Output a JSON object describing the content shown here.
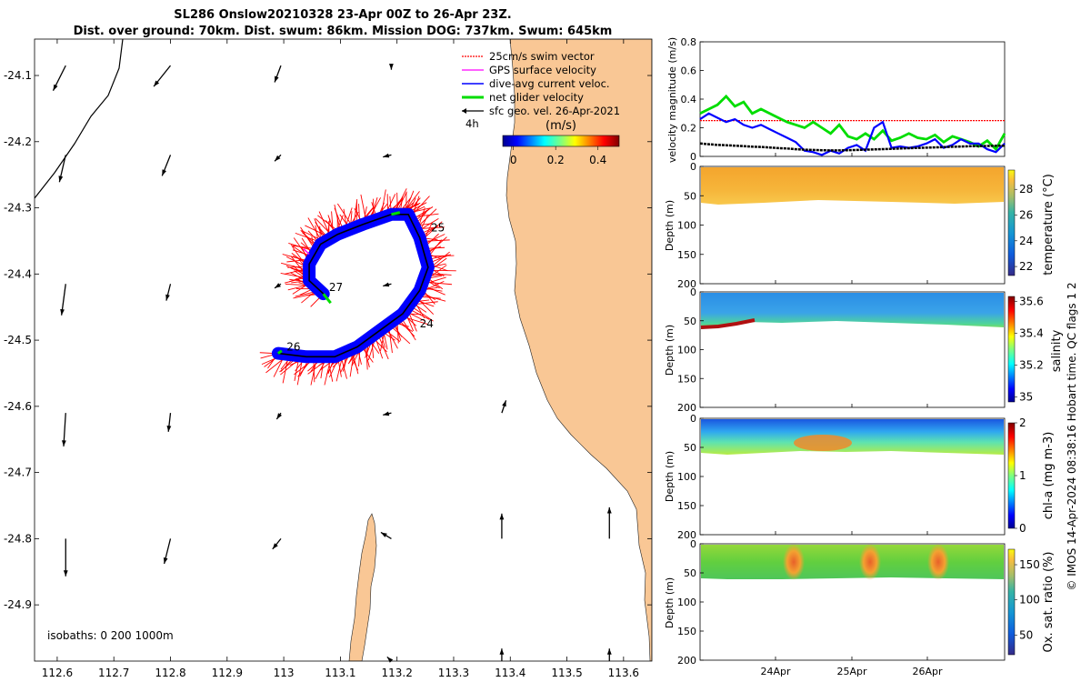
{
  "title": {
    "line1": "SL286 Onslow20210328 23-Apr 00Z to 26-Apr 23Z.",
    "line2": "Dist. over ground: 70km. Dist. swum: 86km. Mission DOG: 737km. Swum: 645km"
  },
  "colors": {
    "land": "#f9c795",
    "track": "#0000ff",
    "swim": "#ff0000",
    "gps": "#ff00ff",
    "net": "#00dd00",
    "geo": "#000000",
    "temp_fill": "#f0b238",
    "oxy_fill": "#6fd53a"
  },
  "chart_data": [
    {
      "type": "map",
      "xlabel": "",
      "ylabel": "",
      "xlim": [
        112.56,
        113.65
      ],
      "ylim": [
        -24.985,
        -24.045
      ],
      "x_ticks": [
        "112.6",
        "112.7",
        "112.8",
        "112.9",
        "113",
        "113.1",
        "113.2",
        "113.3",
        "113.4",
        "113.5",
        "113.6"
      ],
      "y_ticks": [
        "-24.1",
        "-24.2",
        "-24.3",
        "-24.4",
        "-24.5",
        "-24.6",
        "-24.7",
        "-24.8",
        "-24.9"
      ],
      "legend": [
        {
          "label": "25cm/s swim vector",
          "color": "#ff0000"
        },
        {
          "label": "GPS surface velocity",
          "color": "#ff00ff"
        },
        {
          "label": "dive-avg current veloc.",
          "color": "#0000ff"
        },
        {
          "label": "net glider velocity",
          "color": "#00dd00"
        },
        {
          "label": "sfc geo. vel. 26-Apr-2021",
          "color": "#000000"
        }
      ],
      "scale_label": "4h",
      "colorbar": {
        "label": "(m/s)",
        "ticks": [
          "0",
          "0.2",
          "0.4"
        ],
        "range": [
          -0.05,
          0.5
        ]
      },
      "isobath_note": "isobaths: 0   200  1000m",
      "day_labels": [
        {
          "text": "25",
          "lon": 113.26,
          "lat": -24.33
        },
        {
          "text": "27",
          "lon": 113.08,
          "lat": -24.42
        },
        {
          "text": "24",
          "lon": 113.24,
          "lat": -24.475
        },
        {
          "text": "26",
          "lon": 113.005,
          "lat": -24.51
        }
      ],
      "track": [
        {
          "lon": 112.99,
          "lat": -24.52
        },
        {
          "lon": 113.04,
          "lat": -24.525
        },
        {
          "lon": 113.09,
          "lat": -24.525
        },
        {
          "lon": 113.13,
          "lat": -24.51
        },
        {
          "lon": 113.17,
          "lat": -24.485
        },
        {
          "lon": 113.21,
          "lat": -24.46
        },
        {
          "lon": 113.24,
          "lat": -24.425
        },
        {
          "lon": 113.255,
          "lat": -24.39
        },
        {
          "lon": 113.24,
          "lat": -24.345
        },
        {
          "lon": 113.22,
          "lat": -24.31
        },
        {
          "lon": 113.19,
          "lat": -24.31
        },
        {
          "lon": 113.14,
          "lat": -24.325
        },
        {
          "lon": 113.095,
          "lat": -24.34
        },
        {
          "lon": 113.065,
          "lat": -24.355
        },
        {
          "lon": 113.045,
          "lat": -24.385
        },
        {
          "lon": 113.045,
          "lat": -24.41
        },
        {
          "lon": 113.07,
          "lat": -24.43
        }
      ],
      "geo_vectors": [
        {
          "lon": 112.615,
          "lat": -24.085,
          "u": -0.06,
          "v": -0.12
        },
        {
          "lon": 112.8,
          "lat": -24.085,
          "u": -0.08,
          "v": -0.1
        },
        {
          "lon": 112.995,
          "lat": -24.085,
          "u": -0.03,
          "v": -0.08
        },
        {
          "lon": 113.19,
          "lat": -24.085,
          "u": 0.0,
          "v": -0.02
        },
        {
          "lon": 112.615,
          "lat": -24.22,
          "u": -0.03,
          "v": -0.13
        },
        {
          "lon": 112.8,
          "lat": -24.22,
          "u": -0.04,
          "v": -0.1
        },
        {
          "lon": 112.995,
          "lat": -24.22,
          "u": -0.03,
          "v": -0.03
        },
        {
          "lon": 113.19,
          "lat": -24.22,
          "u": -0.04,
          "v": -0.01
        },
        {
          "lon": 112.615,
          "lat": -24.415,
          "u": -0.02,
          "v": -0.15
        },
        {
          "lon": 112.8,
          "lat": -24.415,
          "u": -0.02,
          "v": -0.08
        },
        {
          "lon": 112.995,
          "lat": -24.415,
          "u": -0.03,
          "v": -0.02
        },
        {
          "lon": 113.19,
          "lat": -24.415,
          "u": -0.04,
          "v": -0.01
        },
        {
          "lon": 112.615,
          "lat": -24.61,
          "u": -0.01,
          "v": -0.16
        },
        {
          "lon": 112.8,
          "lat": -24.61,
          "u": -0.01,
          "v": -0.09
        },
        {
          "lon": 112.995,
          "lat": -24.61,
          "u": -0.02,
          "v": -0.03
        },
        {
          "lon": 113.19,
          "lat": -24.61,
          "u": -0.04,
          "v": -0.01
        },
        {
          "lon": 113.385,
          "lat": -24.61,
          "u": 0.02,
          "v": 0.06
        },
        {
          "lon": 112.615,
          "lat": -24.8,
          "u": 0.0,
          "v": -0.18
        },
        {
          "lon": 112.8,
          "lat": -24.8,
          "u": -0.03,
          "v": -0.12
        },
        {
          "lon": 112.995,
          "lat": -24.8,
          "u": -0.04,
          "v": -0.05
        },
        {
          "lon": 113.19,
          "lat": -24.8,
          "u": -0.05,
          "v": 0.03
        },
        {
          "lon": 113.385,
          "lat": -24.8,
          "u": 0.0,
          "v": 0.12
        },
        {
          "lon": 113.575,
          "lat": -24.8,
          "u": 0.0,
          "v": 0.15
        },
        {
          "lon": 113.19,
          "lat": -24.985,
          "u": -0.02,
          "v": 0.02
        },
        {
          "lon": 113.385,
          "lat": -24.985,
          "u": 0.0,
          "v": 0.06
        },
        {
          "lon": 113.575,
          "lat": -24.985,
          "u": 0.0,
          "v": 0.06
        }
      ]
    },
    {
      "type": "line",
      "ylabel": "velocity magnitude (m/s)",
      "ylim": [
        0,
        0.8
      ],
      "y_ticks": [
        "0",
        "0.2",
        "0.4",
        "0.6",
        "0.8"
      ],
      "x_ticks": [
        "24Apr",
        "25Apr",
        "26Apr"
      ],
      "series": [
        {
          "name": "swim 25cm/s",
          "color": "#ff0000",
          "values": [
            0.25,
            0.25,
            0.25,
            0.25,
            0.25,
            0.25,
            0.25,
            0.25,
            0.25,
            0.25,
            0.25,
            0.25,
            0.25,
            0.25,
            0.25,
            0.25,
            0.25,
            0.25,
            0.25,
            0.25,
            0.25,
            0.25,
            0.25,
            0.25,
            0.25,
            0.25,
            0.25,
            0.25,
            0.25,
            0.25,
            0.25,
            0.25,
            0.25,
            0.25,
            0.25,
            0.25
          ]
        },
        {
          "name": "net glider velocity",
          "color": "#00dd00",
          "values": [
            0.3,
            0.33,
            0.36,
            0.42,
            0.35,
            0.38,
            0.3,
            0.33,
            0.3,
            0.27,
            0.24,
            0.22,
            0.2,
            0.24,
            0.2,
            0.16,
            0.22,
            0.14,
            0.12,
            0.16,
            0.12,
            0.18,
            0.11,
            0.13,
            0.16,
            0.13,
            0.12,
            0.15,
            0.1,
            0.14,
            0.12,
            0.1,
            0.07,
            0.11,
            0.05,
            0.16
          ]
        },
        {
          "name": "dive-avg current",
          "color": "#0000ff",
          "values": [
            0.26,
            0.3,
            0.27,
            0.24,
            0.26,
            0.22,
            0.2,
            0.22,
            0.19,
            0.16,
            0.13,
            0.1,
            0.04,
            0.03,
            0.01,
            0.04,
            0.02,
            0.06,
            0.08,
            0.04,
            0.2,
            0.24,
            0.06,
            0.07,
            0.06,
            0.07,
            0.09,
            0.12,
            0.06,
            0.08,
            0.12,
            0.09,
            0.09,
            0.05,
            0.03,
            0.09
          ]
        },
        {
          "name": "sfc geo",
          "color": "#000000",
          "values": [
            0.09,
            0.085,
            0.08,
            0.078,
            0.075,
            0.072,
            0.068,
            0.066,
            0.062,
            0.058,
            0.055,
            0.05,
            0.047,
            0.045,
            0.043,
            0.042,
            0.042,
            0.043,
            0.045,
            0.047,
            0.049,
            0.051,
            0.053,
            0.055,
            0.057,
            0.059,
            0.061,
            0.063,
            0.065,
            0.067,
            0.069,
            0.071,
            0.072,
            0.073,
            0.074,
            0.075
          ]
        }
      ]
    },
    {
      "type": "heatmap",
      "ylabel": "Depth (m)",
      "cbar_label": "temperature (°C)",
      "ylim": [
        200,
        0
      ],
      "y_ticks": [
        "0",
        "50",
        "100",
        "150",
        "200"
      ],
      "cbar_ticks": [
        "22",
        "24",
        "26",
        "28"
      ],
      "cbar_range": [
        21.3,
        29.5
      ]
    },
    {
      "type": "heatmap",
      "ylabel": "Depth (m)",
      "cbar_label": "salinity",
      "ylim": [
        200,
        0
      ],
      "y_ticks": [
        "0",
        "50",
        "100",
        "150",
        "200"
      ],
      "cbar_ticks": [
        "35",
        "35.2",
        "35.4",
        "35.6"
      ],
      "cbar_range": [
        34.97,
        35.63
      ]
    },
    {
      "type": "heatmap",
      "ylabel": "Depth (m)",
      "cbar_label": "chl-a (mg m-3)",
      "ylim": [
        200,
        0
      ],
      "y_ticks": [
        "0",
        "50",
        "100",
        "150",
        "200"
      ],
      "cbar_ticks": [
        "0",
        "1",
        "2"
      ],
      "cbar_range": [
        0,
        2
      ]
    },
    {
      "type": "heatmap",
      "ylabel": "Depth (m)",
      "cbar_label": "Ox. sat. ratio (%)",
      "ylim": [
        200,
        0
      ],
      "y_ticks": [
        "0",
        "50",
        "100",
        "150",
        "200"
      ],
      "cbar_ticks": [
        "50",
        "100",
        "150"
      ],
      "cbar_range": [
        22,
        172
      ]
    }
  ],
  "side_note": "© IMOS 14-Apr-2024 08:38:16 Hobart time. QC flags 1  2",
  "time_axis": [
    "24Apr",
    "25Apr",
    "26Apr"
  ]
}
